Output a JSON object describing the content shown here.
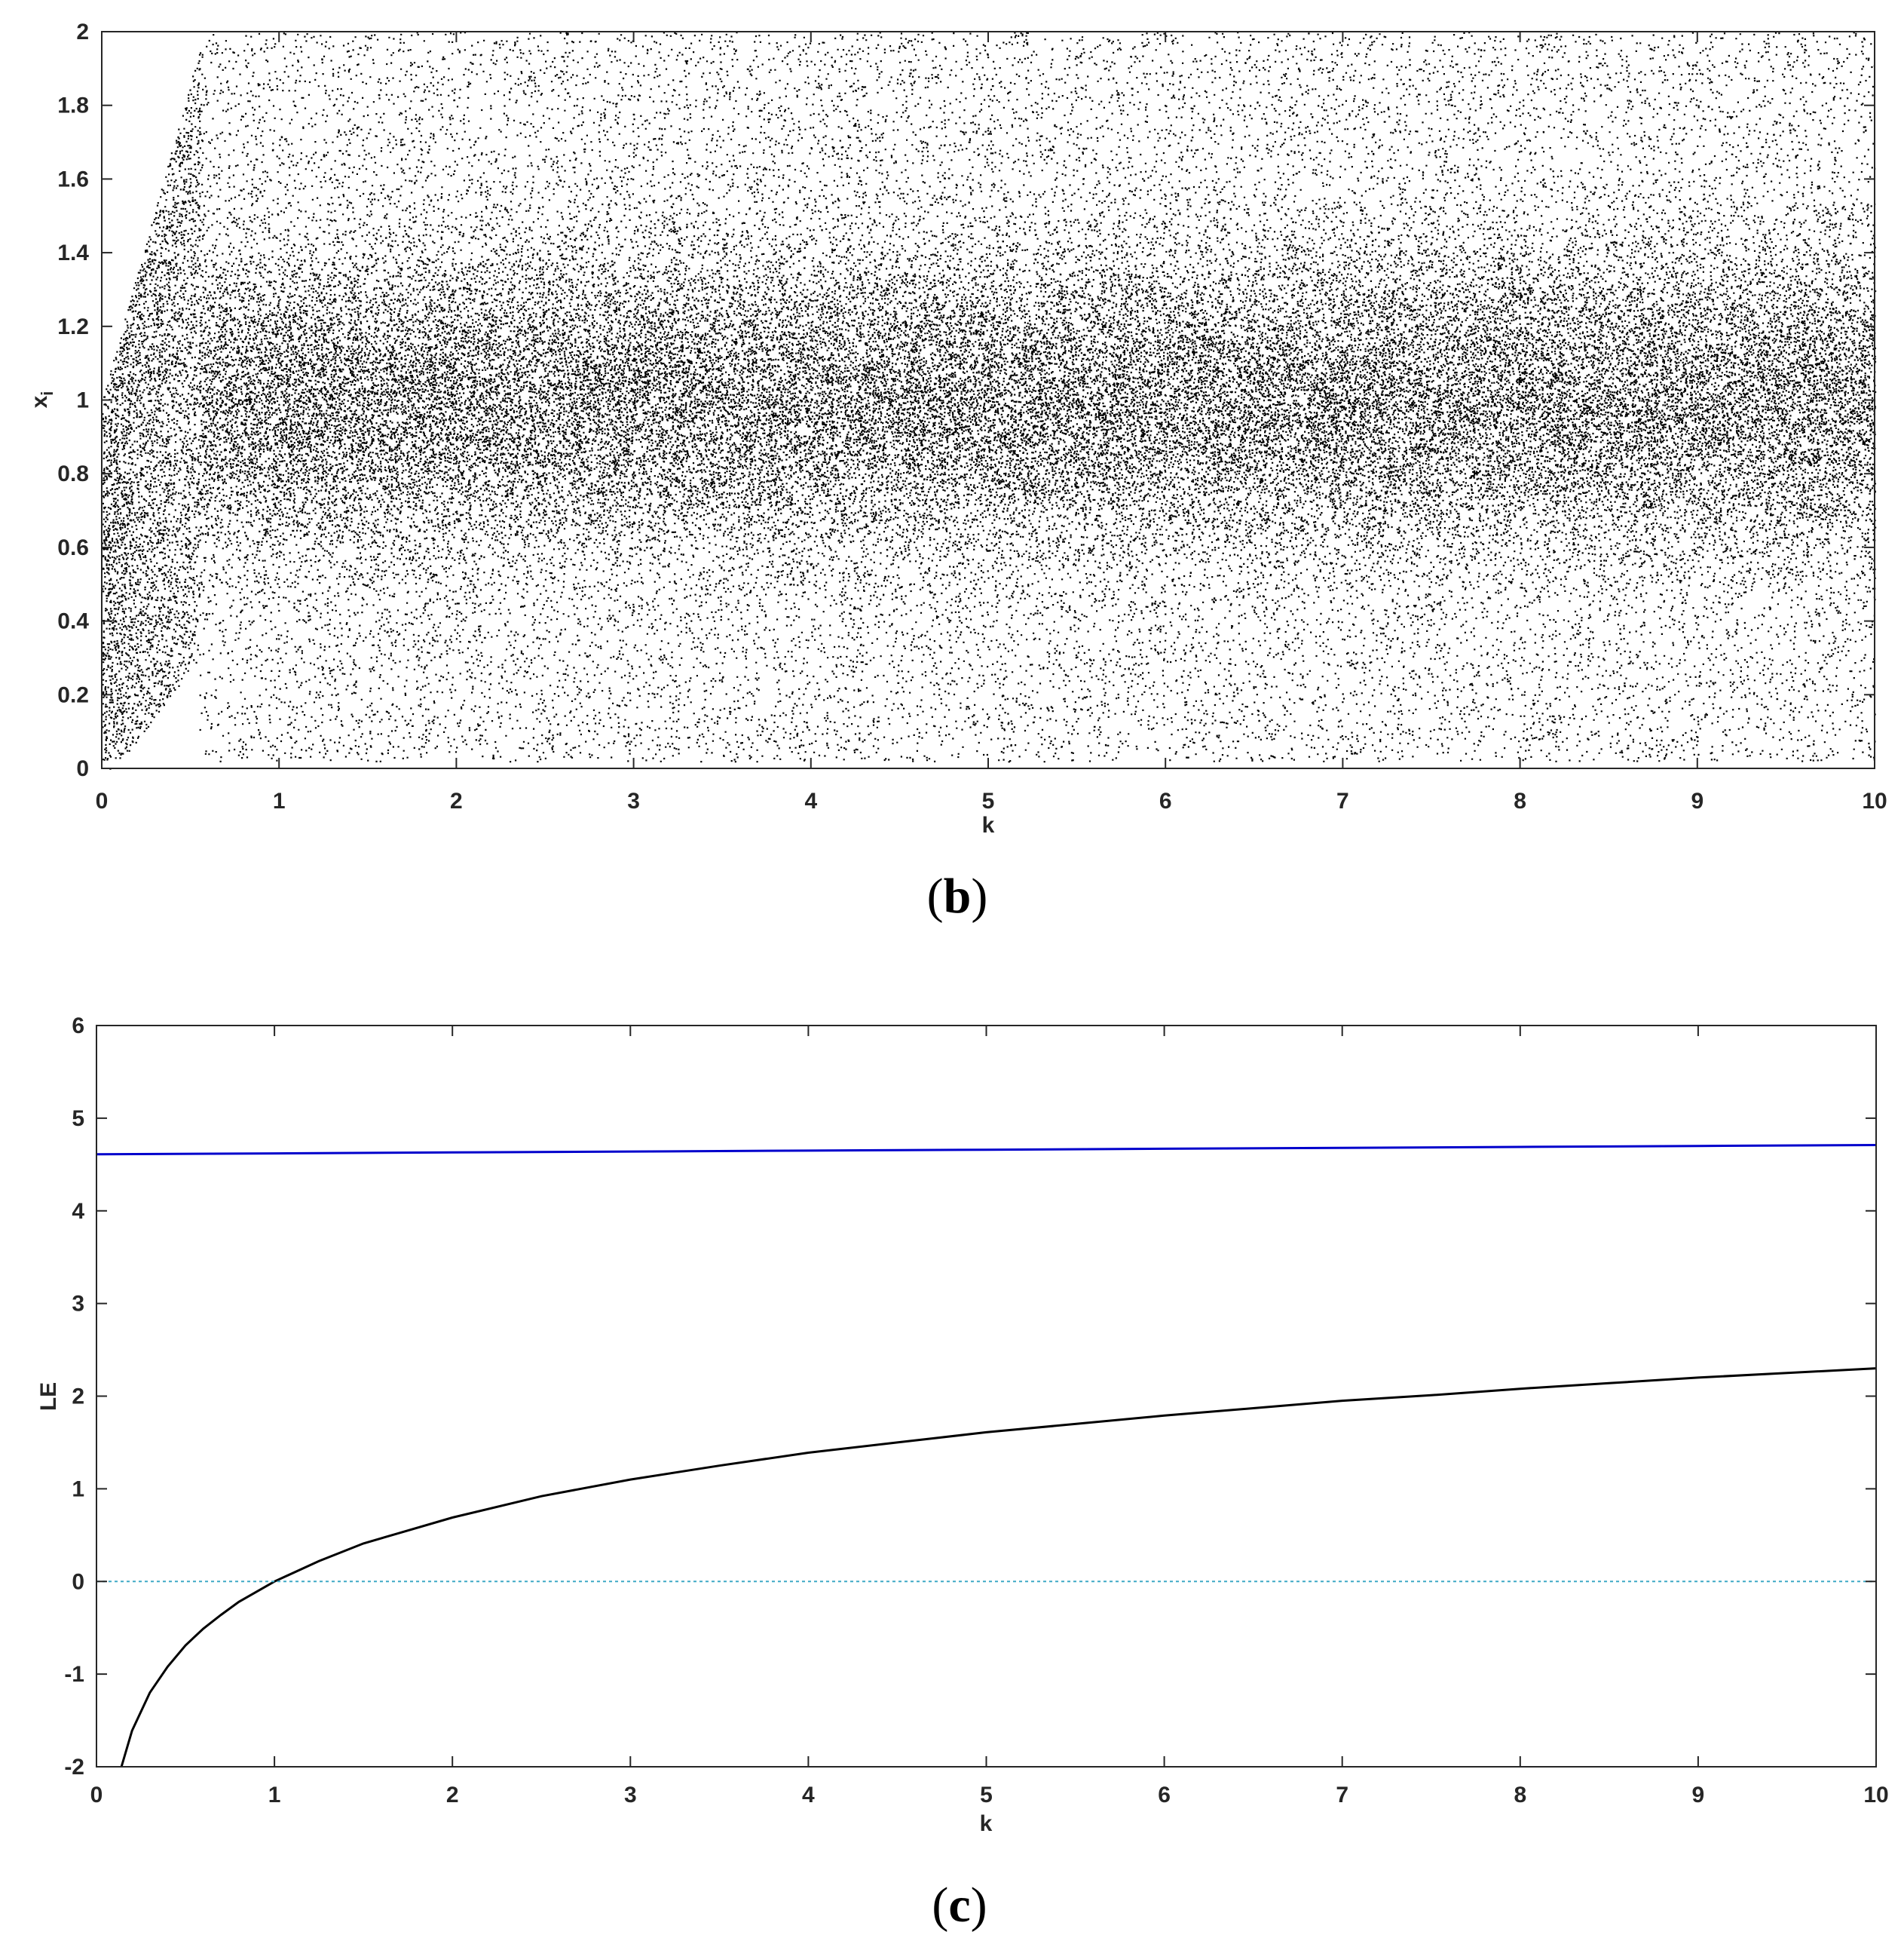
{
  "chart_data": [
    {
      "panel": "(b)",
      "panel_letter": "b",
      "type": "scatter",
      "xlabel": "k",
      "ylabel": "x",
      "ylabel_subscript": "i",
      "xlim": [
        0,
        10
      ],
      "ylim": [
        0,
        2
      ],
      "xticks": [
        "0",
        "1",
        "2",
        "3",
        "4",
        "5",
        "6",
        "7",
        "8",
        "9",
        "10"
      ],
      "yticks": [
        "0",
        "0.2",
        "0.4",
        "0.6",
        "0.8",
        "1",
        "1.2",
        "1.4",
        "1.6",
        "1.8",
        "2"
      ],
      "grid": false,
      "marker_color": "#000000",
      "description_of_density": [
        {
          "k_range": [
            0,
            0.55
          ],
          "x_min": 0,
          "x_max_at_start": 1.0,
          "x_max_at_end": 1.95
        },
        {
          "k_range": [
            0.55,
            10
          ],
          "x_min": 0.02,
          "x_max": 2.0,
          "densest_near": 1.0
        }
      ]
    },
    {
      "panel": "(c)",
      "panel_letter": "c",
      "type": "line",
      "xlabel": "k",
      "ylabel": "LE",
      "xlim": [
        0,
        10
      ],
      "ylim": [
        -2,
        6
      ],
      "xticks": [
        "0",
        "1",
        "2",
        "3",
        "4",
        "5",
        "6",
        "7",
        "8",
        "9",
        "10"
      ],
      "yticks": [
        "-2",
        "-1",
        "0",
        "1",
        "2",
        "3",
        "4",
        "5",
        "6"
      ],
      "grid": false,
      "series": [
        {
          "color": "#0000cc",
          "style": "solid",
          "x": [
            0,
            1,
            2,
            3,
            4,
            5,
            6,
            7,
            8,
            9,
            10
          ],
          "y": [
            4.61,
            4.62,
            4.63,
            4.64,
            4.65,
            4.66,
            4.67,
            4.68,
            4.69,
            4.7,
            4.71
          ]
        },
        {
          "color": "#000000",
          "style": "solid",
          "x": [
            0.14,
            0.2,
            0.3,
            0.4,
            0.5,
            0.6,
            0.7,
            0.8,
            0.9,
            1.0,
            1.25,
            1.5,
            2,
            2.5,
            3,
            3.5,
            4,
            4.5,
            5,
            5.5,
            6,
            6.5,
            7,
            7.5,
            8,
            8.5,
            9,
            9.5,
            10
          ],
          "y": [
            -2.0,
            -1.61,
            -1.2,
            -0.92,
            -0.69,
            -0.51,
            -0.36,
            -0.22,
            -0.11,
            0.0,
            0.22,
            0.41,
            0.69,
            0.92,
            1.1,
            1.25,
            1.39,
            1.5,
            1.61,
            1.7,
            1.79,
            1.87,
            1.95,
            2.01,
            2.08,
            2.14,
            2.2,
            2.25,
            2.3
          ]
        },
        {
          "color": "#3fa9c6",
          "style": "dotted",
          "x": [
            0,
            10
          ],
          "y": [
            0,
            0
          ]
        }
      ]
    }
  ]
}
